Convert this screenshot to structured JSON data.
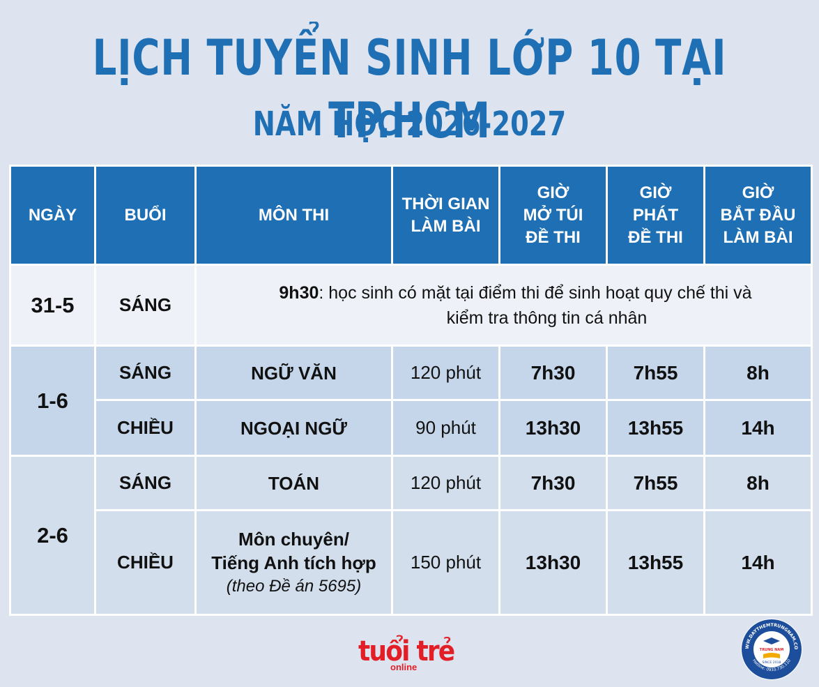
{
  "title": "LỊCH TUYỂN SINH LỚP 10 TẠI TP.HCM",
  "subtitle": "NĂM HỌC 2026-2027",
  "headers": {
    "day": "NGÀY",
    "session": "BUỔI",
    "subject": "MÔN THI",
    "duration": [
      "THỜI GIAN",
      "LÀM BÀI"
    ],
    "open_envelope": [
      "GIỜ",
      "MỞ TÚI",
      "ĐỀ THI"
    ],
    "distribute": [
      "GIỜ",
      "PHÁT",
      "ĐỀ THI"
    ],
    "start": [
      "GIỜ",
      "BẮT ĐẦU",
      "LÀM BÀI"
    ]
  },
  "row_31_5": {
    "day": "31-5",
    "session": "SÁNG",
    "note_time": "9h30",
    "note_line1": ": học sinh có mặt tại điểm thi để sinh hoạt quy chế thi và",
    "note_line2": "kiểm tra thông tin cá nhân"
  },
  "day_1_6": {
    "day": "1-6",
    "morning": {
      "session": "SÁNG",
      "subject": "NGỮ VĂN",
      "duration": "120 phút",
      "open": "7h30",
      "distribute": "7h55",
      "start": "8h"
    },
    "afternoon": {
      "session": "CHIỀU",
      "subject": "NGOẠI NGỮ",
      "duration": "90 phút",
      "open": "13h30",
      "distribute": "13h55",
      "start": "14h"
    }
  },
  "day_2_6": {
    "day": "2-6",
    "morning": {
      "session": "SÁNG",
      "subject": "TOÁN",
      "duration": "120 phút",
      "open": "7h30",
      "distribute": "7h55",
      "start": "8h"
    },
    "afternoon": {
      "session": "CHIỀU",
      "subject_line1": "Môn chuyên/",
      "subject_line2": "Tiếng Anh tích hợp",
      "subject_note": "(theo Đề án 5695)",
      "duration": "150 phút",
      "open": "13h30",
      "distribute": "13h55",
      "start": "14h"
    }
  },
  "logo": {
    "main": "tuổi trẻ",
    "sub": "online"
  },
  "seal": {
    "ring_text": "WWW.DAYTHEMTRUNGNAM.COM",
    "center_text": "TRUNG NAM",
    "since": "SINCE 2018",
    "hotline": "Hotline: 0933.730.110"
  },
  "colors": {
    "accent": "#1f6fb4",
    "brand_red": "#e21e26",
    "row_blue": "#c5d6ea",
    "row_light": "#eef2f8"
  }
}
